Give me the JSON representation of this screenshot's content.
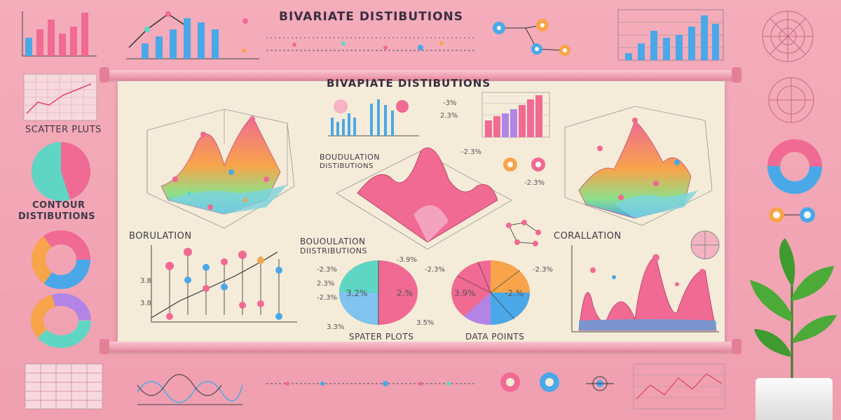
{
  "header": {
    "title": "BIVARIATE DISTIBUTIONS"
  },
  "poster": {
    "title": "BIVAPIATE DISTIBUTIONS",
    "labels": {
      "bodulation_top": "BOUDULATION",
      "distributions_small": "DISTIBUTIONS",
      "bodulation_left": "BORULATION",
      "boudulation_mid": "BOUOULATION",
      "distributions_mid": "DIISTRIBUTIONS",
      "corallation": "CORALLATION",
      "spater_plots": "SPATER PLOTS",
      "data_points": "DATA POINTS"
    },
    "percent_labels": {
      "p1": "-3%",
      "p2": "2.3%",
      "p3": "-2.3%",
      "p4": "-2.3%",
      "p5": "-2.3%",
      "p6": "2.3%",
      "p7": "-2.3%",
      "p8": "3.3%",
      "p9": "-3.9%",
      "p10": "-2.3%",
      "p11": "3.5%",
      "p12": "-2.3%",
      "pie1_a": "3.2%",
      "pie1_b": "2.%",
      "pie2_a": "3.9%",
      "pie2_b": "-2.%",
      "tick1": "3.8",
      "tick2": "3.8"
    }
  },
  "side_labels": {
    "scatter_plots": "SCATTER PLUTS",
    "contour_1": "CONTOUR",
    "contour_2": "DISTIBUTIONS"
  },
  "colors": {
    "pink": "#f06a93",
    "blue": "#4aa8e8",
    "teal": "#5fd6c4",
    "orange": "#f7a44a",
    "purple": "#b284e6"
  }
}
